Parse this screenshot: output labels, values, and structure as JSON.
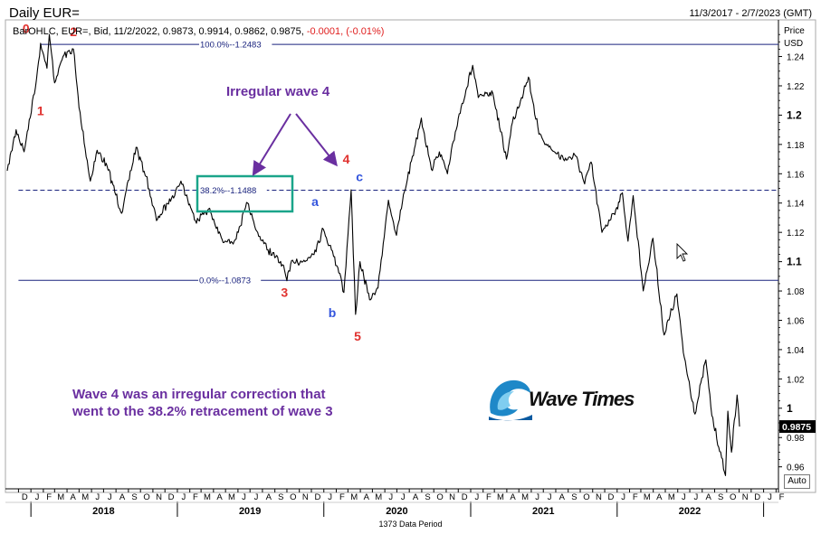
{
  "header": {
    "title": "Daily EUR=",
    "date_range": "11/3/2017 - 2/7/2023 (GMT)",
    "ohlc_prefix": "BarOHLC, EUR=, Bid, 11/2/2022, 0.9873, 0.9914, 0.9862, 0.9875,",
    "ohlc_change": "-0.0001, (-0.01%)"
  },
  "axis_units": {
    "line1": "Price",
    "line2": "USD"
  },
  "auto_label": "Auto",
  "footer_label": "1373 Data Period",
  "annotations": {
    "title": "Irregular wave 4",
    "note_line1": "Wave 4 was an irregular correction that",
    "note_line2": "went to the 38.2% retracement of wave 3"
  },
  "logo": {
    "text": "Wave Times"
  },
  "colors": {
    "series": "#000000",
    "wave_red": "#e0312e",
    "wave_blue": "#3355dd",
    "annotation_purple": "#6a2fa0",
    "fib_line": "#1a237e",
    "box_teal": "#1aa58a",
    "last_price_box": "#000000"
  },
  "chart_data": {
    "type": "line",
    "title": "Daily EUR=",
    "ylabel": "Price USD",
    "x_start": "2017-11-03",
    "x_end": "2023-02-07",
    "ylim": [
      0.945,
      1.265
    ],
    "grid": false,
    "y_ticks": [
      0.96,
      0.98,
      1.0,
      1.02,
      1.04,
      1.06,
      1.08,
      1.1,
      1.12,
      1.14,
      1.16,
      1.18,
      1.2,
      1.22,
      1.24
    ],
    "y_tick_labels": [
      "0.96",
      "0.98",
      "1",
      "1.02",
      "1.04",
      "1.06",
      "1.08",
      "1.1",
      "1.12",
      "1.14",
      "1.16",
      "1.18",
      "1.2",
      "1.22",
      "1.24"
    ],
    "month_labels": [
      "D",
      "J",
      "F",
      "M",
      "A",
      "M",
      "J",
      "J",
      "A",
      "S",
      "O",
      "N",
      "D",
      "J",
      "F",
      "M",
      "A",
      "M",
      "J",
      "J",
      "A",
      "S",
      "O",
      "N",
      "D",
      "J",
      "F",
      "M",
      "A",
      "M",
      "J",
      "J",
      "A",
      "S",
      "O",
      "N",
      "D",
      "J",
      "F",
      "M",
      "A",
      "M",
      "J",
      "J",
      "A",
      "S",
      "O",
      "N",
      "D",
      "J",
      "F",
      "M",
      "A",
      "M",
      "J",
      "J",
      "A",
      "S",
      "O",
      "N",
      "D",
      "J",
      "F"
    ],
    "years": [
      {
        "label": "2018",
        "mid": "2018-07-01"
      },
      {
        "label": "2019",
        "mid": "2019-07-01"
      },
      {
        "label": "2020",
        "mid": "2020-07-01"
      },
      {
        "label": "2021",
        "mid": "2021-07-01"
      },
      {
        "label": "2022",
        "mid": "2022-07-01"
      }
    ],
    "series": [
      {
        "values": [
          [
            "2017-11-03",
            1.162
          ],
          [
            "2017-11-25",
            1.19
          ],
          [
            "2017-12-15",
            1.175
          ],
          [
            "2018-01-15",
            1.225
          ],
          [
            "2018-01-25",
            1.249
          ],
          [
            "2018-02-10",
            1.232
          ],
          [
            "2018-02-16",
            1.255
          ],
          [
            "2018-03-01",
            1.222
          ],
          [
            "2018-03-22",
            1.24
          ],
          [
            "2018-04-17",
            1.245
          ],
          [
            "2018-05-01",
            1.205
          ],
          [
            "2018-05-29",
            1.155
          ],
          [
            "2018-06-15",
            1.176
          ],
          [
            "2018-07-10",
            1.165
          ],
          [
            "2018-08-15",
            1.133
          ],
          [
            "2018-09-20",
            1.178
          ],
          [
            "2018-10-15",
            1.158
          ],
          [
            "2018-11-10",
            1.128
          ],
          [
            "2018-12-20",
            1.145
          ],
          [
            "2019-01-10",
            1.155
          ],
          [
            "2019-02-15",
            1.128
          ],
          [
            "2019-03-20",
            1.136
          ],
          [
            "2019-04-25",
            1.113
          ],
          [
            "2019-05-25",
            1.115
          ],
          [
            "2019-06-25",
            1.14
          ],
          [
            "2019-07-15",
            1.122
          ],
          [
            "2019-08-15",
            1.108
          ],
          [
            "2019-09-20",
            1.098
          ],
          [
            "2019-10-01",
            1.087
          ],
          [
            "2019-10-15",
            1.101
          ],
          [
            "2019-11-15",
            1.1
          ],
          [
            "2019-12-10",
            1.108
          ],
          [
            "2019-12-31",
            1.122
          ],
          [
            "2020-01-20",
            1.108
          ],
          [
            "2020-02-10",
            1.092
          ],
          [
            "2020-02-20",
            1.079
          ],
          [
            "2020-03-09",
            1.149
          ],
          [
            "2020-03-20",
            1.064
          ],
          [
            "2020-03-31",
            1.1
          ],
          [
            "2020-04-24",
            1.074
          ],
          [
            "2020-05-15",
            1.082
          ],
          [
            "2020-06-10",
            1.142
          ],
          [
            "2020-06-30",
            1.118
          ],
          [
            "2020-07-20",
            1.148
          ],
          [
            "2020-08-31",
            1.198
          ],
          [
            "2020-09-25",
            1.163
          ],
          [
            "2020-10-15",
            1.175
          ],
          [
            "2020-11-04",
            1.16
          ],
          [
            "2020-12-01",
            1.198
          ],
          [
            "2021-01-06",
            1.234
          ],
          [
            "2021-01-20",
            1.212
          ],
          [
            "2021-02-25",
            1.215
          ],
          [
            "2021-03-31",
            1.17
          ],
          [
            "2021-04-15",
            1.195
          ],
          [
            "2021-05-25",
            1.226
          ],
          [
            "2021-06-20",
            1.187
          ],
          [
            "2021-07-20",
            1.177
          ],
          [
            "2021-08-20",
            1.17
          ],
          [
            "2021-09-20",
            1.172
          ],
          [
            "2021-10-12",
            1.153
          ],
          [
            "2021-10-28",
            1.168
          ],
          [
            "2021-11-24",
            1.12
          ],
          [
            "2021-12-31",
            1.137
          ],
          [
            "2022-01-14",
            1.147
          ],
          [
            "2022-01-28",
            1.114
          ],
          [
            "2022-02-10",
            1.145
          ],
          [
            "2022-03-07",
            1.08
          ],
          [
            "2022-03-31",
            1.116
          ],
          [
            "2022-04-28",
            1.05
          ],
          [
            "2022-05-30",
            1.078
          ],
          [
            "2022-06-15",
            1.038
          ],
          [
            "2022-07-14",
            0.996
          ],
          [
            "2022-08-10",
            1.033
          ],
          [
            "2022-08-25",
            0.995
          ],
          [
            "2022-09-28",
            0.954
          ],
          [
            "2022-10-04",
            0.998
          ],
          [
            "2022-10-13",
            0.97
          ],
          [
            "2022-10-27",
            1.009
          ],
          [
            "2022-11-02",
            0.9875
          ]
        ]
      }
    ],
    "fib_levels": [
      {
        "label": "100.0%--1.2483",
        "value": 1.2483,
        "style": "solid",
        "x_from": "2018-01-25"
      },
      {
        "label": "38.2%--1.1488",
        "value": 1.1488,
        "style": "dashed",
        "x_from": "2017-12-01"
      },
      {
        "label": "0.0%--1.0873",
        "value": 1.0873,
        "style": "solid",
        "x_from": "2017-12-01"
      }
    ],
    "wave_labels": [
      {
        "text": "0",
        "x": "2017-12-20",
        "y": 1.256,
        "color": "red"
      },
      {
        "text": "1",
        "x": "2018-01-25",
        "y": 1.2,
        "color": "red"
      },
      {
        "text": "2",
        "x": "2018-04-17",
        "y": 1.254,
        "color": "red"
      },
      {
        "text": "3",
        "x": "2019-09-25",
        "y": 1.076,
        "color": "red"
      },
      {
        "text": "4",
        "x": "2020-02-26",
        "y": 1.167,
        "color": "red"
      },
      {
        "text": "5",
        "x": "2020-03-25",
        "y": 1.046,
        "color": "red"
      },
      {
        "text": "a",
        "x": "2019-12-10",
        "y": 1.138,
        "color": "blue"
      },
      {
        "text": "b",
        "x": "2020-01-22",
        "y": 1.062,
        "color": "blue"
      },
      {
        "text": "c",
        "x": "2020-03-30",
        "y": 1.155,
        "color": "blue"
      }
    ],
    "last_price": {
      "value": 0.9875,
      "label": "0.9875"
    }
  }
}
